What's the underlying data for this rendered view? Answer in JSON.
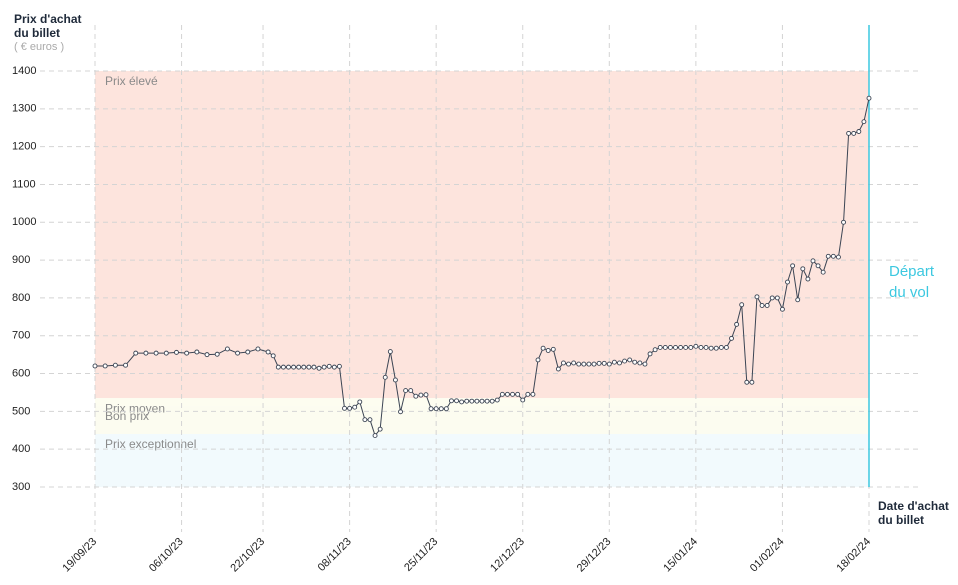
{
  "chart_data": {
    "type": "line",
    "y_title": "Prix d'achat du billet",
    "y_unit": "( € euros )",
    "x_title": "Date d'achat du billet",
    "annotation": "Départ du vol",
    "annotation_x": 152,
    "annotation_color": "#3cc8e0",
    "xlim": [
      0,
      152
    ],
    "ylim": [
      300,
      1400
    ],
    "xticks": [
      {
        "value": 0,
        "label": "19/09/23"
      },
      {
        "value": 17,
        "label": "06/10/23"
      },
      {
        "value": 33,
        "label": "22/10/23"
      },
      {
        "value": 50,
        "label": "08/11/23"
      },
      {
        "value": 67,
        "label": "25/11/23"
      },
      {
        "value": 84,
        "label": "12/12/23"
      },
      {
        "value": 101,
        "label": "29/12/23"
      },
      {
        "value": 118,
        "label": "15/01/24"
      },
      {
        "value": 135,
        "label": "01/02/24"
      },
      {
        "value": 152,
        "label": "18/02/24"
      }
    ],
    "yticks": [
      300,
      400,
      500,
      600,
      700,
      800,
      900,
      1000,
      1100,
      1200,
      1300,
      1400
    ],
    "grid": true,
    "bands": [
      {
        "label": "Prix élevé",
        "range": [
          535,
          1400
        ],
        "color": "#fde4dd"
      },
      {
        "label": "Prix moyen",
        "range": [
          514,
          535
        ],
        "color": "#fdfdf0"
      },
      {
        "label": "Bon prix",
        "range": [
          440,
          514
        ],
        "color": "#fcfcf0"
      },
      {
        "label": "Prix exceptionnel",
        "range": [
          300,
          440
        ],
        "color": "#f2fafd"
      }
    ],
    "x": [
      0,
      2,
      4,
      6,
      8,
      10,
      12,
      14,
      16,
      18,
      20,
      22,
      24,
      26,
      28,
      30,
      32,
      34,
      35,
      36,
      37,
      38,
      39,
      40,
      41,
      42,
      43,
      44,
      45,
      46,
      47,
      48,
      49,
      50,
      51,
      52,
      53,
      54,
      55,
      56,
      57,
      58,
      59,
      60,
      61,
      62,
      63,
      64,
      65,
      66,
      67,
      68,
      69,
      70,
      71,
      72,
      73,
      74,
      75,
      76,
      77,
      78,
      79,
      80,
      81,
      82,
      83,
      84,
      85,
      86,
      87,
      88,
      89,
      90,
      91,
      92,
      93,
      94,
      95,
      96,
      97,
      98,
      99,
      100,
      101,
      102,
      103,
      104,
      105,
      106,
      107,
      108,
      109,
      110,
      111,
      112,
      113,
      114,
      115,
      116,
      117,
      118,
      119,
      120,
      121,
      122,
      123,
      124,
      125,
      126,
      127,
      128,
      129,
      130,
      131,
      132,
      133,
      134,
      135,
      136,
      137,
      138,
      139,
      140,
      141,
      142,
      143,
      144,
      145,
      146,
      147,
      148,
      149,
      150,
      151,
      152
    ],
    "series": [
      {
        "color": "#3c4554",
        "values": [
          620,
          620,
          622,
          622,
          654,
          654,
          654,
          654,
          656,
          654,
          657,
          650,
          651,
          665,
          654,
          657,
          665,
          657,
          647,
          617,
          617,
          617,
          617,
          617,
          617,
          617,
          617,
          614,
          617,
          619,
          617,
          619,
          508,
          508,
          511,
          525,
          478,
          478,
          436,
          453,
          590,
          658,
          583,
          499,
          555,
          555,
          540,
          543,
          544,
          507,
          507,
          507,
          507,
          528,
          528,
          525,
          527,
          527,
          527,
          527,
          527,
          527,
          530,
          545,
          545,
          545,
          545,
          530,
          545,
          545,
          636,
          667,
          661,
          664,
          612,
          628,
          625,
          628,
          625,
          625,
          625,
          625,
          627,
          627,
          625,
          630,
          628,
          633,
          636,
          630,
          628,
          625,
          652,
          663,
          669,
          669,
          669,
          669,
          669,
          669,
          669,
          672,
          669,
          669,
          667,
          667,
          669,
          669,
          693,
          730,
          782,
          577,
          577,
          803,
          780,
          780,
          800,
          800,
          770,
          842,
          885,
          795,
          877,
          850,
          898,
          885,
          868,
          910,
          910,
          908,
          1000,
          1235,
          1235,
          1240,
          1266,
          1328
        ]
      }
    ]
  }
}
